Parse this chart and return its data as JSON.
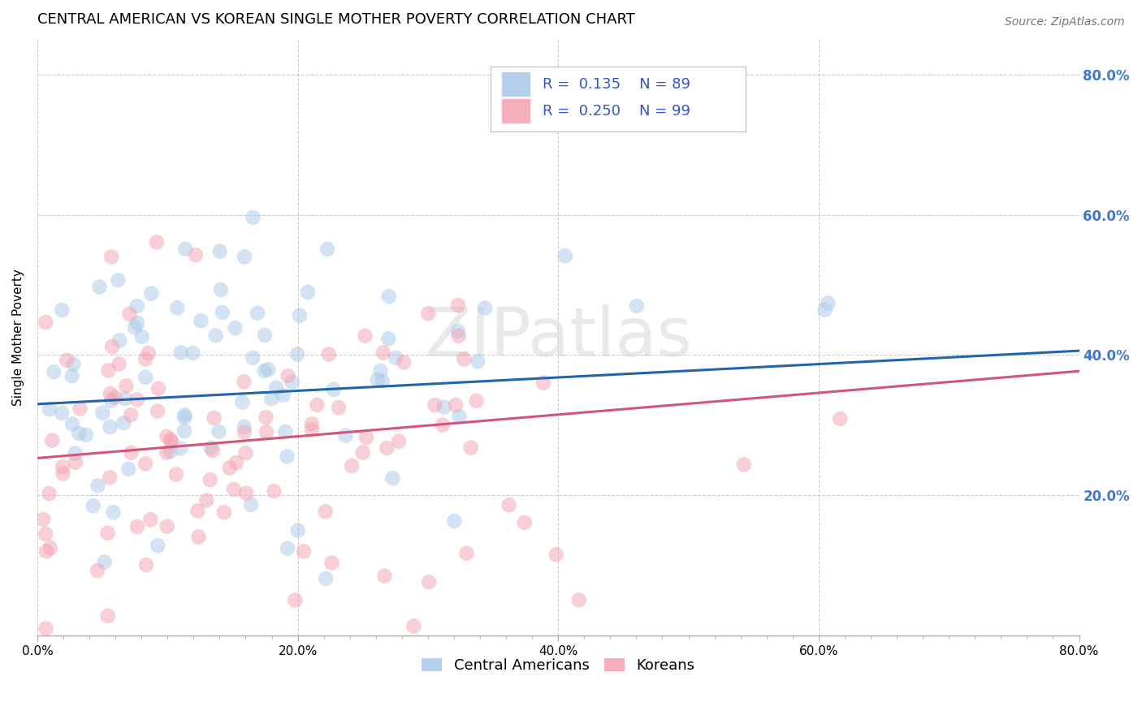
{
  "title": "CENTRAL AMERICAN VS KOREAN SINGLE MOTHER POVERTY CORRELATION CHART",
  "source_text": "Source: ZipAtlas.com",
  "ylabel": "Single Mother Poverty",
  "legend_labels": [
    "Central Americans",
    "Koreans"
  ],
  "xlim": [
    0.0,
    0.8
  ],
  "ylim": [
    0.0,
    0.85
  ],
  "ytick_labels": [
    "20.0%",
    "40.0%",
    "60.0%",
    "80.0%"
  ],
  "ytick_vals": [
    0.2,
    0.4,
    0.6,
    0.8
  ],
  "xtick_labels": [
    "0.0%",
    "20.0%",
    "40.0%",
    "60.0%",
    "80.0%"
  ],
  "xtick_minor_count": 9,
  "xtick_vals": [
    0.0,
    0.2,
    0.4,
    0.6,
    0.8
  ],
  "blue_color": "#a8c8e8",
  "pink_color": "#f4a0b0",
  "blue_line_color": "#2166ac",
  "pink_line_color": "#d4547a",
  "legend_text_color": "#3355cc",
  "watermark_color": "#d8d8d8",
  "axis_tick_color": "#4477cc",
  "background_color": "#ffffff",
  "title_fontsize": 13,
  "axis_label_fontsize": 11,
  "tick_fontsize": 11,
  "legend_fontsize": 13,
  "source_fontsize": 10,
  "blue_R": 0.135,
  "blue_N": 89,
  "pink_R": 0.25,
  "pink_N": 99,
  "blue_intercept": 0.33,
  "blue_slope": 0.095,
  "pink_intercept": 0.253,
  "pink_slope": 0.155,
  "random_seed_blue": 42,
  "random_seed_pink": 7,
  "marker_size": 180,
  "marker_alpha": 0.5,
  "grid_color": "#cccccc",
  "grid_linestyle": "--",
  "grid_linewidth": 0.8
}
